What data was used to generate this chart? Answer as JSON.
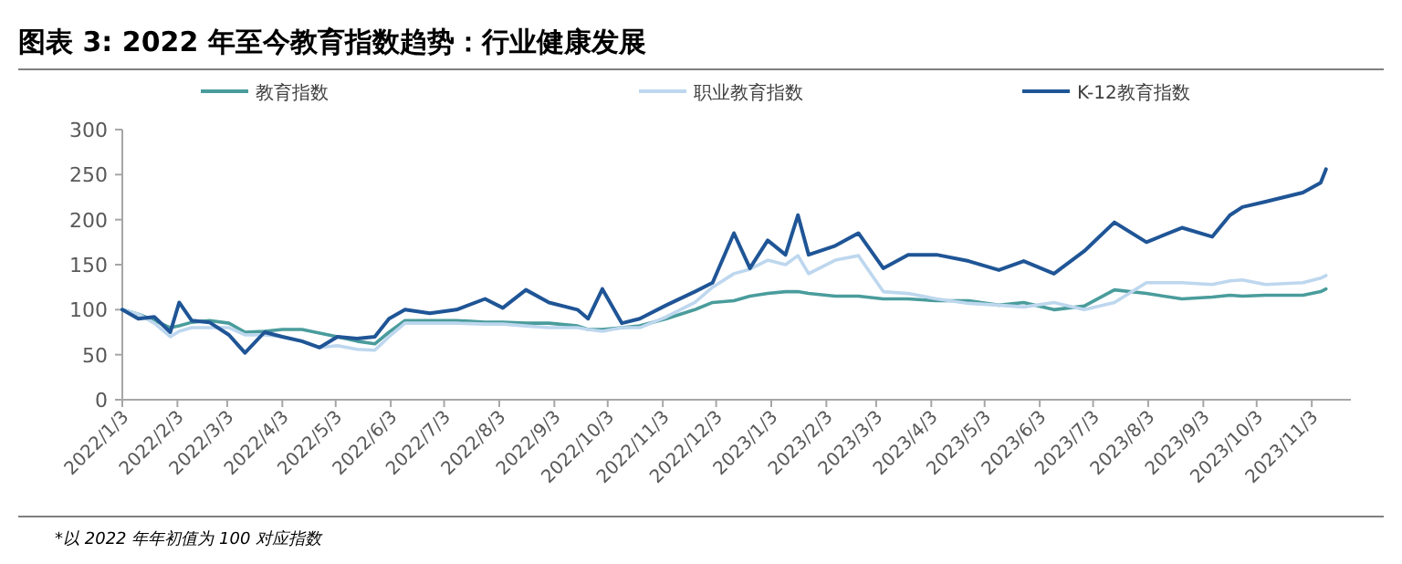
{
  "chart_data": {
    "type": "line",
    "title": "图表 3: 2022 年至今教育指数趋势：行业健康发展",
    "annotations": [
      "*以 2022 年年初值为 100 对应指数"
    ],
    "x": [
      "2022-01-03",
      "2022-01-12",
      "2022-01-21",
      "2022-01-30",
      "2022-02-04",
      "2022-02-11",
      "2022-02-21",
      "2022-03-04",
      "2022-03-13",
      "2022-03-24",
      "2022-04-03",
      "2022-04-14",
      "2022-04-24",
      "2022-05-04",
      "2022-05-15",
      "2022-05-25",
      "2022-06-02",
      "2022-06-11",
      "2022-06-25",
      "2022-07-10",
      "2022-07-26",
      "2022-08-05",
      "2022-08-18",
      "2022-08-31",
      "2022-09-16",
      "2022-09-22",
      "2022-09-30",
      "2022-10-11",
      "2022-10-21",
      "2022-11-05",
      "2022-11-21",
      "2022-12-01",
      "2022-12-13",
      "2022-12-22",
      "2023-01-01",
      "2023-01-11",
      "2023-01-18",
      "2023-01-24",
      "2023-02-08",
      "2023-02-21",
      "2023-03-07",
      "2023-03-21",
      "2023-04-06",
      "2023-04-24",
      "2023-05-11",
      "2023-05-25",
      "2023-06-11",
      "2023-06-28",
      "2023-07-15",
      "2023-08-02",
      "2023-08-22",
      "2023-09-08",
      "2023-09-18",
      "2023-09-25",
      "2023-10-08",
      "2023-10-29",
      "2023-11-08",
      "2023-11-11"
    ],
    "series": [
      {
        "name": "教育指数",
        "color": "#4a9c9c",
        "values": [
          100,
          95,
          88,
          80,
          82,
          86,
          88,
          85,
          75,
          76,
          78,
          78,
          74,
          70,
          65,
          62,
          75,
          88,
          88,
          88,
          86,
          86,
          85,
          85,
          82,
          78,
          78,
          80,
          82,
          90,
          100,
          108,
          110,
          115,
          118,
          120,
          120,
          118,
          115,
          115,
          112,
          112,
          110,
          110,
          105,
          108,
          100,
          104,
          122,
          118,
          112,
          114,
          116,
          115,
          116,
          116,
          120,
          123
        ]
      },
      {
        "name": "职业教育指数",
        "color": "#bdd7ee",
        "values": [
          100,
          95,
          85,
          70,
          76,
          80,
          80,
          80,
          72,
          72,
          70,
          65,
          58,
          60,
          56,
          55,
          70,
          85,
          85,
          85,
          84,
          84,
          82,
          80,
          80,
          78,
          76,
          80,
          80,
          92,
          108,
          125,
          140,
          145,
          155,
          150,
          160,
          140,
          155,
          160,
          120,
          118,
          112,
          107,
          105,
          103,
          108,
          100,
          108,
          130,
          130,
          128,
          132,
          133,
          128,
          130,
          135,
          138
        ]
      },
      {
        "name": "K-12教育指数",
        "color": "#1f5596",
        "values": [
          100,
          90,
          92,
          75,
          108,
          88,
          86,
          72,
          52,
          75,
          70,
          65,
          58,
          70,
          68,
          70,
          90,
          100,
          96,
          100,
          112,
          102,
          122,
          108,
          100,
          90,
          123,
          85,
          90,
          105,
          120,
          130,
          185,
          146,
          177,
          161,
          205,
          161,
          171,
          185,
          146,
          161,
          161,
          154,
          144,
          154,
          140,
          165,
          197,
          175,
          191,
          181,
          205,
          214,
          220,
          230,
          241,
          256
        ]
      }
    ],
    "xlim": [
      "2022-01-03",
      "2023-11-25"
    ],
    "xticks": [
      {
        "value": "2022-01-03",
        "label": "2022/1/3"
      },
      {
        "value": "2022-02-03",
        "label": "2022/2/3"
      },
      {
        "value": "2022-03-03",
        "label": "2022/3/3"
      },
      {
        "value": "2022-04-03",
        "label": "2022/4/3"
      },
      {
        "value": "2022-05-03",
        "label": "2022/5/3"
      },
      {
        "value": "2022-06-03",
        "label": "2022/6/3"
      },
      {
        "value": "2022-07-03",
        "label": "2022/7/3"
      },
      {
        "value": "2022-08-03",
        "label": "2022/8/3"
      },
      {
        "value": "2022-09-03",
        "label": "2022/9/3"
      },
      {
        "value": "2022-10-03",
        "label": "2022/10/3"
      },
      {
        "value": "2022-11-03",
        "label": "2022/11/3"
      },
      {
        "value": "2022-12-03",
        "label": "2022/12/3"
      },
      {
        "value": "2023-01-03",
        "label": "2023/1/3"
      },
      {
        "value": "2023-02-03",
        "label": "2023/2/3"
      },
      {
        "value": "2023-03-03",
        "label": "2023/3/3"
      },
      {
        "value": "2023-04-03",
        "label": "2023/4/3"
      },
      {
        "value": "2023-05-03",
        "label": "2023/5/3"
      },
      {
        "value": "2023-06-03",
        "label": "2023/6/3"
      },
      {
        "value": "2023-07-03",
        "label": "2023/7/3"
      },
      {
        "value": "2023-08-03",
        "label": "2023/8/3"
      },
      {
        "value": "2023-09-03",
        "label": "2023/9/3"
      },
      {
        "value": "2023-10-03",
        "label": "2023/10/3"
      },
      {
        "value": "2023-11-03",
        "label": "2023/11/3"
      }
    ],
    "ylim": [
      0,
      300
    ],
    "yticks": [
      0,
      50,
      100,
      150,
      200,
      250,
      300
    ],
    "grid": false,
    "legend": "top",
    "line_style": "solid",
    "marker": "none"
  }
}
